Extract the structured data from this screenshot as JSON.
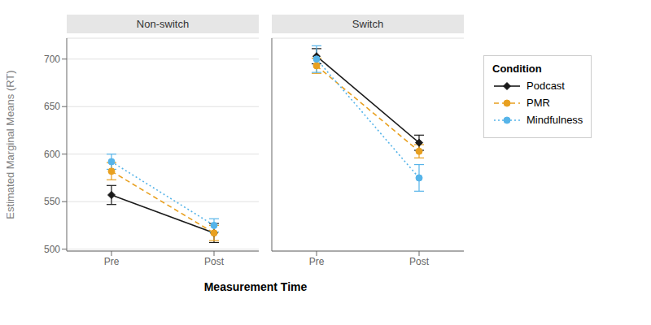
{
  "chart_data": [
    {
      "type": "line",
      "title": "Non-switch",
      "categories": [
        "Pre",
        "Post"
      ],
      "series": [
        {
          "name": "Podcast",
          "color": "#1a1a1a",
          "line_style": "solid",
          "marker": "diamond",
          "values": [
            557,
            517
          ],
          "errors": [
            10,
            10
          ]
        },
        {
          "name": "PMR",
          "color": "#E8A020",
          "line_style": "dashed",
          "marker": "circle",
          "values": [
            582,
            517
          ],
          "errors": [
            9,
            8
          ]
        },
        {
          "name": "Mindfulness",
          "color": "#56B4E9",
          "line_style": "dotted",
          "marker": "circle",
          "values": [
            592,
            525
          ],
          "errors": [
            8,
            7
          ]
        }
      ],
      "xlabel": "Measurement Time",
      "ylabel": "Estimated Marginal Means (RT)",
      "ylim": [
        498,
        722
      ],
      "yticks": [
        500,
        550,
        600,
        650,
        700
      ],
      "grid": true
    },
    {
      "type": "line",
      "title": "Switch",
      "categories": [
        "Pre",
        "Post"
      ],
      "series": [
        {
          "name": "Podcast",
          "color": "#1a1a1a",
          "line_style": "solid",
          "marker": "diamond",
          "values": [
            703,
            612
          ],
          "errors": [
            8,
            8
          ]
        },
        {
          "name": "PMR",
          "color": "#E8A020",
          "line_style": "dashed",
          "marker": "circle",
          "values": [
            693,
            603
          ],
          "errors": [
            8,
            7
          ]
        },
        {
          "name": "Mindfulness",
          "color": "#56B4E9",
          "line_style": "dotted",
          "marker": "circle",
          "values": [
            700,
            575
          ],
          "errors": [
            14,
            14
          ]
        }
      ],
      "ylim": [
        498,
        722
      ],
      "yticks": [
        500,
        550,
        600,
        650,
        700
      ],
      "grid": true,
      "tick_labels": "x",
      "legend": "right",
      "legend_title": "Condition"
    }
  ]
}
